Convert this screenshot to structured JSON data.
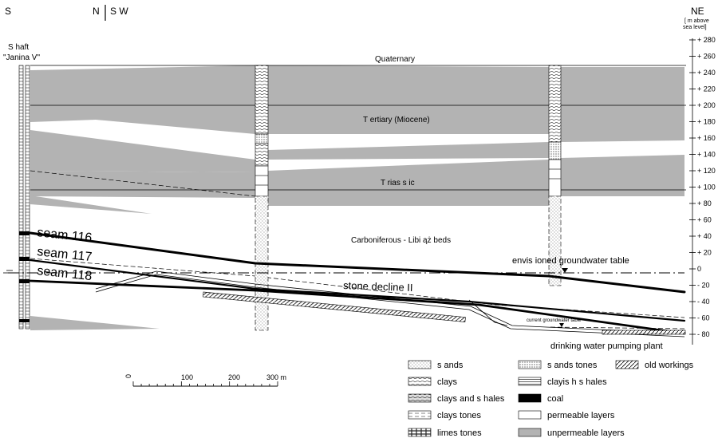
{
  "header": {
    "left_dir": "S",
    "mid_dir_left": "N",
    "mid_dir_right": "S W",
    "right_dir": "NE",
    "elev_unit": "[ m above\nsea level]"
  },
  "shaft": {
    "line1": "S haft",
    "line2": "\"Janina V\""
  },
  "elevation_axis": {
    "ticks": [
      "+ 280",
      "+ 260",
      "+ 240",
      "+ 220",
      "+ 200",
      "+ 180",
      "+ 160",
      "+ 140",
      "+ 120",
      "+ 100",
      "+ 80",
      "+ 60",
      "+ 40",
      "+ 20",
      "0",
      "- 20",
      "- 40",
      "- 60",
      "- 80"
    ]
  },
  "labels": {
    "quaternary": "Quaternary",
    "tertiary": "T ertiary (Miocene)",
    "triassic": "T rias s ic",
    "carboniferous": "Carboniferous - Libi ąż beds",
    "seam116": "seam 116",
    "seam117": "seam 117",
    "seam118": "seam 118",
    "groundwater": "envis ioned groundwater table",
    "current_groundwater": "current groundwater table",
    "stone_decline": "stone decline II",
    "pumping_plant": "drinking water pumping plant"
  },
  "scale": {
    "t0": "0",
    "t100": "100",
    "t200": "200",
    "t300": "300 m"
  },
  "legend": {
    "col1": [
      "s ands",
      "clays",
      "clays and s hales",
      "clays tones",
      "limes tones"
    ],
    "col2": [
      "s ands tones",
      "clayis h s hales",
      "coal",
      "permeable layers",
      "unpermeable layers"
    ],
    "col3": [
      "old workings"
    ]
  },
  "colors": {
    "unpermeable": "#b3b3b3",
    "line": "#000000"
  }
}
